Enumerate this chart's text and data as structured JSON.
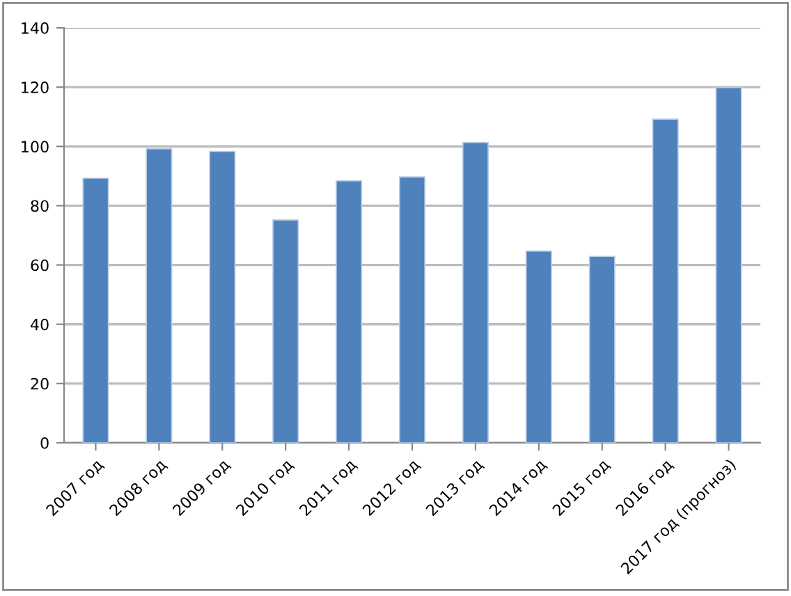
{
  "chart_data": {
    "type": "bar",
    "categories": [
      "2007 год",
      "2008 год",
      "2009 год",
      "2010 год",
      "2011 год",
      "2012 год",
      "2013 год",
      "2014 год",
      "2015 год",
      "2016 год",
      "2017 год (прогноз)"
    ],
    "values": [
      89.3,
      99.2,
      98.3,
      75.2,
      88.4,
      89.7,
      101.3,
      64.7,
      62.9,
      109.2,
      119.9
    ],
    "color": "#4f81bd",
    "ylim": [
      0,
      140
    ],
    "yticks": [
      0,
      20,
      40,
      60,
      80,
      100,
      120,
      140
    ],
    "grid": "y",
    "legend": false
  }
}
